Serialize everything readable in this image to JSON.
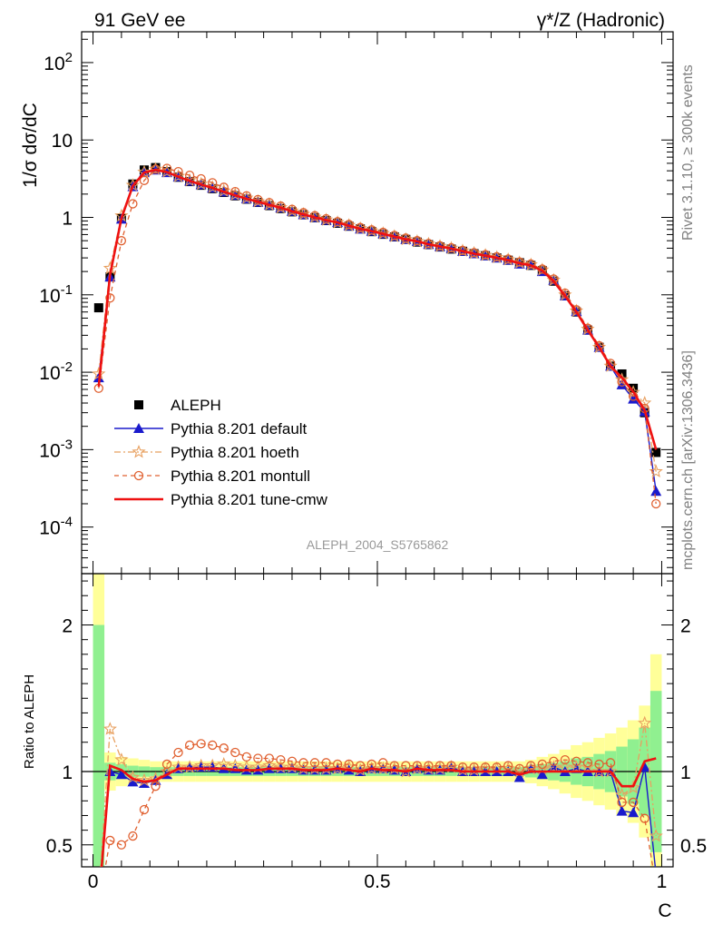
{
  "header": {
    "left_label": "91 GeV ee",
    "right_label": "γ*/Z (Hadronic)"
  },
  "side_labels": {
    "rivet": "Rivet 3.1.10, ≥ 300k events",
    "mcplots": "mcplots.cern.ch [arXiv:1306.3436]"
  },
  "analysis_label": "ALEPH_2004_S5765862",
  "colors": {
    "data": "#000000",
    "default": "#1a1acc",
    "hoeth": "#e8a060",
    "montull": "#e06030",
    "cmw": "#ee1111",
    "band_inner": "#90f090",
    "band_outer": "#ffff99"
  },
  "chart_data": [
    {
      "type": "scatter",
      "panel": "main",
      "ylabel": "1/σ  dσ/dC",
      "yscale": "log",
      "ylim": [
        2.5e-05,
        250
      ],
      "xlim": [
        -0.02,
        1.02
      ],
      "ytick_labels": [
        "10^-4",
        "10^-3",
        "10^-2",
        "10^-1",
        "1",
        "10",
        "10^2"
      ],
      "legend_position": "lower-left",
      "x": [
        0.01,
        0.03,
        0.05,
        0.07,
        0.09,
        0.11,
        0.13,
        0.15,
        0.17,
        0.19,
        0.21,
        0.23,
        0.25,
        0.27,
        0.29,
        0.31,
        0.33,
        0.35,
        0.37,
        0.39,
        0.41,
        0.43,
        0.45,
        0.47,
        0.49,
        0.51,
        0.53,
        0.55,
        0.57,
        0.59,
        0.61,
        0.63,
        0.65,
        0.67,
        0.69,
        0.71,
        0.73,
        0.75,
        0.77,
        0.79,
        0.81,
        0.83,
        0.85,
        0.87,
        0.89,
        0.91,
        0.93,
        0.95,
        0.97,
        0.99
      ],
      "series": [
        {
          "name": "ALEPH",
          "key": "data",
          "marker": "square",
          "values": [
            0.068,
            0.17,
            0.97,
            2.7,
            4.1,
            4.4,
            3.9,
            3.3,
            2.9,
            2.6,
            2.35,
            2.1,
            1.9,
            1.72,
            1.56,
            1.42,
            1.3,
            1.18,
            1.08,
            0.99,
            0.91,
            0.84,
            0.77,
            0.71,
            0.655,
            0.605,
            0.56,
            0.52,
            0.48,
            0.445,
            0.415,
            0.39,
            0.365,
            0.34,
            0.32,
            0.3,
            0.28,
            0.26,
            0.24,
            0.205,
            0.15,
            0.097,
            0.06,
            0.035,
            0.021,
            0.012,
            0.0095,
            0.0062,
            0.003,
            0.00092
          ]
        },
        {
          "name": "Pythia 8.201 default",
          "key": "default",
          "marker": "triangle",
          "values": [
            0.0085,
            0.17,
            0.95,
            2.5,
            3.8,
            4.1,
            3.8,
            3.35,
            2.95,
            2.65,
            2.4,
            2.14,
            1.93,
            1.74,
            1.58,
            1.45,
            1.33,
            1.2,
            1.09,
            1.0,
            0.92,
            0.86,
            0.78,
            0.71,
            0.665,
            0.615,
            0.565,
            0.52,
            0.49,
            0.45,
            0.42,
            0.4,
            0.365,
            0.34,
            0.32,
            0.3,
            0.28,
            0.25,
            0.245,
            0.2,
            0.155,
            0.097,
            0.061,
            0.035,
            0.021,
            0.012,
            0.0069,
            0.0045,
            0.0031,
            0.00029
          ]
        },
        {
          "name": "Pythia 8.201 hoeth",
          "key": "hoeth",
          "marker": "star",
          "values": [
            0.0095,
            0.22,
            1.05,
            2.6,
            3.85,
            4.2,
            3.9,
            3.4,
            3.0,
            2.7,
            2.45,
            2.2,
            1.97,
            1.78,
            1.61,
            1.47,
            1.34,
            1.21,
            1.1,
            1.01,
            0.93,
            0.86,
            0.79,
            0.72,
            0.67,
            0.62,
            0.57,
            0.52,
            0.49,
            0.455,
            0.425,
            0.4,
            0.37,
            0.345,
            0.325,
            0.305,
            0.285,
            0.26,
            0.245,
            0.21,
            0.155,
            0.1,
            0.062,
            0.036,
            0.021,
            0.012,
            0.008,
            0.0055,
            0.004,
            0.00052
          ]
        },
        {
          "name": "Pythia 8.201 montull",
          "key": "montull",
          "marker": "circle",
          "values": [
            0.0062,
            0.091,
            0.5,
            1.5,
            3.0,
            4.2,
            4.3,
            3.9,
            3.5,
            3.15,
            2.8,
            2.45,
            2.15,
            1.9,
            1.7,
            1.55,
            1.4,
            1.27,
            1.15,
            1.05,
            0.96,
            0.88,
            0.81,
            0.74,
            0.69,
            0.64,
            0.585,
            0.54,
            0.5,
            0.46,
            0.43,
            0.405,
            0.375,
            0.35,
            0.33,
            0.31,
            0.29,
            0.265,
            0.25,
            0.215,
            0.16,
            0.105,
            0.064,
            0.037,
            0.022,
            0.013,
            0.0075,
            0.0049,
            0.0034,
            0.0002
          ]
        },
        {
          "name": "Pythia 8.201 tune-cmw",
          "key": "cmw",
          "marker": "line",
          "values": [
            0.0065,
            0.18,
            0.98,
            2.55,
            3.8,
            4.1,
            3.85,
            3.35,
            2.95,
            2.65,
            2.4,
            2.14,
            1.93,
            1.74,
            1.59,
            1.45,
            1.33,
            1.2,
            1.09,
            1.0,
            0.92,
            0.86,
            0.78,
            0.71,
            0.665,
            0.61,
            0.565,
            0.52,
            0.49,
            0.45,
            0.42,
            0.395,
            0.365,
            0.34,
            0.32,
            0.3,
            0.28,
            0.255,
            0.24,
            0.205,
            0.15,
            0.097,
            0.06,
            0.035,
            0.021,
            0.012,
            0.0085,
            0.0056,
            0.0032,
            0.001
          ]
        }
      ]
    },
    {
      "type": "line",
      "panel": "ratio",
      "ylabel": "Ratio to ALEPH",
      "xlabel": "C",
      "ylim": [
        0.35,
        2.35
      ],
      "xlim": [
        -0.02,
        1.02
      ],
      "x_tick_labels": [
        "0",
        "0.5",
        "1"
      ],
      "y_tick_labels": [
        "0.5",
        "1",
        "2"
      ],
      "x": [
        0.01,
        0.03,
        0.05,
        0.07,
        0.09,
        0.11,
        0.13,
        0.15,
        0.17,
        0.19,
        0.21,
        0.23,
        0.25,
        0.27,
        0.29,
        0.31,
        0.33,
        0.35,
        0.37,
        0.39,
        0.41,
        0.43,
        0.45,
        0.47,
        0.49,
        0.51,
        0.53,
        0.55,
        0.57,
        0.59,
        0.61,
        0.63,
        0.65,
        0.67,
        0.69,
        0.71,
        0.73,
        0.75,
        0.77,
        0.79,
        0.81,
        0.83,
        0.85,
        0.87,
        0.89,
        0.91,
        0.93,
        0.95,
        0.97,
        0.99
      ],
      "bands": {
        "inner_halfwidth": [
          1.0,
          0.06,
          0.05,
          0.04,
          0.035,
          0.03,
          0.03,
          0.03,
          0.03,
          0.03,
          0.03,
          0.03,
          0.03,
          0.03,
          0.03,
          0.03,
          0.03,
          0.03,
          0.03,
          0.03,
          0.03,
          0.03,
          0.03,
          0.03,
          0.03,
          0.03,
          0.03,
          0.03,
          0.03,
          0.03,
          0.03,
          0.03,
          0.03,
          0.03,
          0.03,
          0.03,
          0.03,
          0.03,
          0.04,
          0.05,
          0.06,
          0.07,
          0.09,
          0.1,
          0.12,
          0.14,
          0.17,
          0.22,
          0.3,
          0.55
        ],
        "outer_halfwidth": [
          1.5,
          0.13,
          0.1,
          0.09,
          0.08,
          0.07,
          0.07,
          0.07,
          0.07,
          0.07,
          0.07,
          0.07,
          0.07,
          0.07,
          0.07,
          0.07,
          0.07,
          0.07,
          0.07,
          0.07,
          0.07,
          0.07,
          0.07,
          0.07,
          0.07,
          0.07,
          0.07,
          0.07,
          0.07,
          0.07,
          0.07,
          0.07,
          0.07,
          0.07,
          0.07,
          0.07,
          0.07,
          0.07,
          0.08,
          0.1,
          0.12,
          0.15,
          0.18,
          0.2,
          0.23,
          0.26,
          0.3,
          0.35,
          0.45,
          0.8
        ]
      },
      "series": [
        {
          "name": "Pythia 8.201 default",
          "key": "default",
          "marker": "triangle",
          "values": [
            0.12,
            1.0,
            0.98,
            0.93,
            0.92,
            0.94,
            0.98,
            1.02,
            1.03,
            1.03,
            1.03,
            1.02,
            1.02,
            1.01,
            1.01,
            1.02,
            1.02,
            1.02,
            1.01,
            1.01,
            1.01,
            1.02,
            1.01,
            1.0,
            1.02,
            1.02,
            1.01,
            1.0,
            1.02,
            1.01,
            1.01,
            1.03,
            1.0,
            1.0,
            1.0,
            1.0,
            1.0,
            0.96,
            1.02,
            0.98,
            1.03,
            1.0,
            1.02,
            1.0,
            1.0,
            1.0,
            0.73,
            0.72,
            1.03,
            0.3
          ]
        },
        {
          "name": "Pythia 8.201 hoeth",
          "key": "hoeth",
          "marker": "star",
          "values": [
            0.14,
            1.29,
            1.08,
            0.96,
            0.94,
            0.95,
            1.0,
            1.03,
            1.03,
            1.04,
            1.04,
            1.05,
            1.04,
            1.03,
            1.03,
            1.04,
            1.03,
            1.03,
            1.02,
            1.02,
            1.02,
            1.02,
            1.03,
            1.01,
            1.02,
            1.02,
            1.02,
            1.0,
            1.02,
            1.02,
            1.02,
            1.03,
            1.01,
            1.01,
            1.02,
            1.02,
            1.02,
            1.0,
            1.02,
            1.02,
            1.03,
            1.03,
            1.03,
            1.03,
            1.0,
            1.0,
            0.84,
            0.89,
            1.33,
            0.56
          ]
        },
        {
          "name": "Pythia 8.201 montull",
          "key": "montull",
          "marker": "circle",
          "values": [
            0.09,
            0.53,
            0.5,
            0.56,
            0.74,
            0.9,
            1.05,
            1.13,
            1.18,
            1.19,
            1.18,
            1.16,
            1.13,
            1.1,
            1.09,
            1.09,
            1.08,
            1.07,
            1.06,
            1.06,
            1.06,
            1.05,
            1.05,
            1.04,
            1.05,
            1.06,
            1.04,
            1.04,
            1.04,
            1.04,
            1.04,
            1.04,
            1.03,
            1.03,
            1.03,
            1.03,
            1.04,
            1.02,
            1.04,
            1.05,
            1.07,
            1.08,
            1.07,
            1.06,
            1.05,
            1.06,
            0.79,
            0.79,
            0.68,
            0.22
          ]
        },
        {
          "name": "Pythia 8.201 tune-cmw",
          "key": "cmw",
          "marker": "line",
          "values": [
            0.1,
            1.04,
            1.01,
            0.95,
            0.93,
            0.94,
            0.98,
            1.02,
            1.02,
            1.02,
            1.02,
            1.02,
            1.01,
            1.01,
            1.01,
            1.02,
            1.02,
            1.02,
            1.01,
            1.01,
            1.01,
            1.02,
            1.01,
            1.0,
            1.02,
            1.01,
            1.01,
            1.0,
            1.02,
            1.01,
            1.01,
            1.01,
            1.0,
            1.0,
            1.0,
            1.0,
            1.0,
            0.98,
            1.0,
            1.0,
            1.0,
            1.0,
            1.0,
            1.0,
            1.0,
            1.0,
            0.9,
            0.9,
            1.07,
            1.09
          ]
        }
      ]
    }
  ]
}
